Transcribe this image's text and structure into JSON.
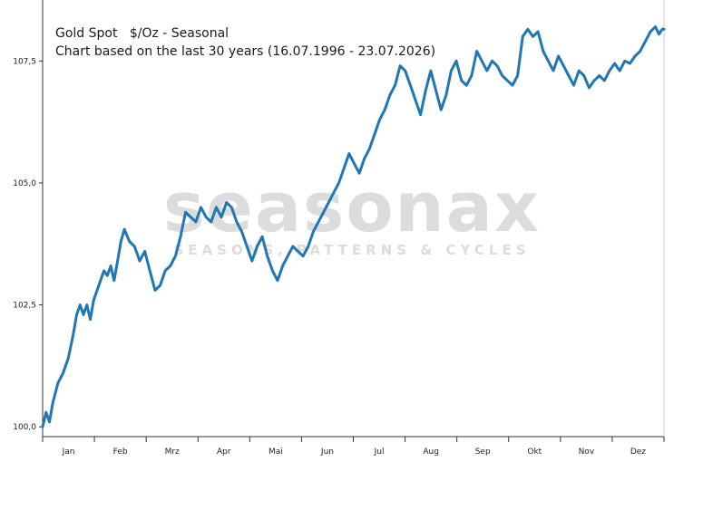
{
  "chart_data": {
    "type": "line",
    "title": "Gold Spot   $/Oz - Seasonal",
    "subtitle": "Chart based on the last 30 years (16.07.1996 - 23.07.2026)",
    "months": [
      "Jan",
      "Feb",
      "Mrz",
      "Apr",
      "Mai",
      "Jun",
      "Jul",
      "Aug",
      "Sep",
      "Okt",
      "Nov",
      "Dez"
    ],
    "y_ticks": [
      "100,0",
      "102,5",
      "105,0",
      "107,5"
    ],
    "y_tick_values": [
      100,
      102.5,
      105,
      107.5
    ],
    "ylim": [
      99.8,
      108.75
    ],
    "grid": false,
    "watermark": {
      "brand": "seasonax",
      "tagline": "SEASONS, PATTERNS & CYCLES"
    },
    "series": [
      {
        "color": "#1f77b4",
        "x": [
          0,
          2,
          4,
          6,
          9,
          12,
          15,
          18,
          20,
          22,
          24,
          26,
          28,
          30,
          32,
          34,
          36,
          38,
          40,
          42,
          44,
          46,
          48,
          51,
          54,
          57,
          60,
          63,
          66,
          69,
          72,
          75,
          78,
          81,
          84,
          87,
          90,
          93,
          96,
          99,
          102,
          105,
          108,
          111,
          114,
          117,
          120,
          123,
          126,
          129,
          132,
          135,
          138,
          141,
          144,
          147,
          150,
          153,
          156,
          159,
          162,
          165,
          168,
          171,
          174,
          177,
          180,
          183,
          186,
          189,
          192,
          195,
          198,
          201,
          204,
          207,
          210,
          213,
          216,
          219,
          222,
          225,
          228,
          231,
          234,
          237,
          240,
          243,
          246,
          249,
          252,
          255,
          258,
          261,
          264,
          267,
          270,
          273,
          276,
          279,
          282,
          285,
          288,
          291,
          294,
          297,
          300,
          303,
          306,
          309,
          312,
          315,
          318,
          321,
          324,
          327,
          330,
          333,
          336,
          339,
          342,
          345,
          348,
          351,
          354,
          357,
          360,
          362,
          364,
          365
        ],
        "values": [
          100.0,
          100.3,
          100.1,
          100.5,
          100.9,
          101.1,
          101.4,
          101.9,
          102.3,
          102.5,
          102.3,
          102.5,
          102.2,
          102.6,
          102.8,
          103.0,
          103.2,
          103.1,
          103.3,
          103.0,
          103.4,
          103.8,
          104.05,
          103.8,
          103.7,
          103.4,
          103.6,
          103.2,
          102.8,
          102.9,
          103.2,
          103.3,
          103.5,
          103.9,
          104.4,
          104.3,
          104.2,
          104.5,
          104.3,
          104.2,
          104.5,
          104.3,
          104.6,
          104.5,
          104.2,
          104.0,
          103.7,
          103.4,
          103.7,
          103.9,
          103.5,
          103.2,
          103.0,
          103.3,
          103.5,
          103.7,
          103.6,
          103.5,
          103.7,
          104.0,
          104.2,
          104.4,
          104.6,
          104.8,
          105.0,
          105.3,
          105.6,
          105.4,
          105.2,
          105.5,
          105.7,
          106.0,
          106.3,
          106.5,
          106.8,
          107.0,
          107.4,
          107.3,
          107.0,
          106.7,
          106.4,
          106.9,
          107.3,
          106.9,
          106.5,
          106.8,
          107.3,
          107.5,
          107.1,
          107.0,
          107.2,
          107.7,
          107.5,
          107.3,
          107.5,
          107.4,
          107.2,
          107.1,
          107.0,
          107.2,
          108.0,
          108.15,
          108.0,
          108.1,
          107.7,
          107.5,
          107.3,
          107.6,
          107.4,
          107.2,
          107.0,
          107.3,
          107.2,
          106.95,
          107.1,
          107.2,
          107.1,
          107.3,
          107.45,
          107.3,
          107.5,
          107.45,
          107.6,
          107.7,
          107.9,
          108.1,
          108.2,
          108.05,
          108.15,
          108.15
        ]
      }
    ]
  }
}
